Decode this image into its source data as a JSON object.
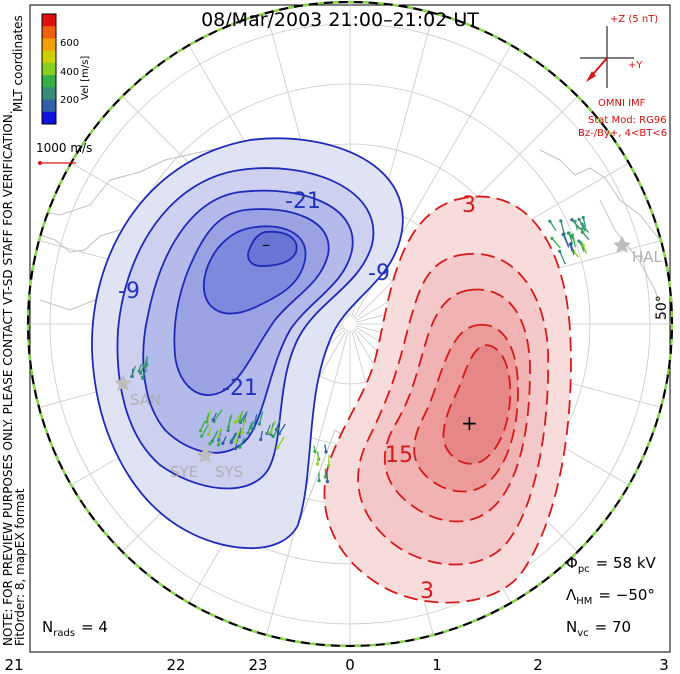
{
  "title": "08/Mar/2003 21:00–21:02 UT",
  "colorbar": {
    "ticks": [
      "600",
      "400",
      "200"
    ],
    "label": "Vel [m/s]",
    "colors": [
      "#e01010",
      "#f06010",
      "#f0a000",
      "#d0d000",
      "#88d020",
      "#38b048",
      "#3a8a78",
      "#3060a8",
      "#1010e0"
    ]
  },
  "scale_label": "1000 m/s",
  "side_text": {
    "coords": "MLT coordinates",
    "note": "NOTE: FOR PREVIEW PURPOSES ONLY. PLEASE CONTACT VT-SD STAFF FOR VERIFICATION.",
    "fit": "FitOrder: 8, mapEX format"
  },
  "imf": {
    "z_label": "+Z (5 nT)",
    "y_label": "+Y",
    "source": "OMNI IMF",
    "model": "Stat Mod: RG96",
    "condition": "Bz-/By+, 4<BT<6"
  },
  "contours": {
    "negative_labels": [
      "-9",
      "-21",
      "-9",
      "-21",
      "–"
    ],
    "positive_labels": [
      "3",
      "15",
      "3",
      "+"
    ]
  },
  "radars": [
    "SAN",
    "SYE",
    "SYS",
    "HAL"
  ],
  "latitude_label": "50°",
  "stats": {
    "phi_symbol": "Φ",
    "phi_sub": "pc",
    "phi_value": "= 58 kV",
    "lambda_symbol": "Λ",
    "lambda_sub": "HM",
    "lambda_value": "= −50°",
    "nvc_symbol": "N",
    "nvc_sub": "vc",
    "nvc_value": "= 70",
    "nrads_symbol": "N",
    "nrads_sub": "rads",
    "nrads_value": "= 4"
  },
  "mlt_axis": [
    "21",
    "22",
    "23",
    "0",
    "1",
    "2",
    "3"
  ],
  "colors": {
    "negative": "#1e2ab8",
    "positive": "#d41a1a",
    "hmb": "#88dd44"
  }
}
